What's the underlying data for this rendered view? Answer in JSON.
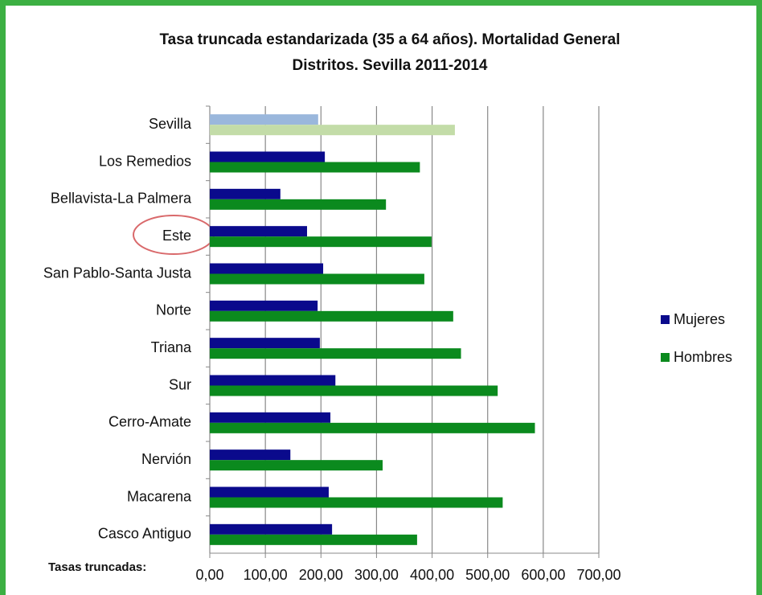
{
  "chart_data": {
    "type": "hbar",
    "title": [
      "Tasa truncada estandarizada (35 a 64 años). Mortalidad General",
      "Distritos. Sevilla 2011-2014"
    ],
    "x_label": "Tasas truncadas:",
    "categories": [
      "Sevilla",
      "Los Remedios",
      "Bellavista-La Palmera",
      "Este",
      "San Pablo-Santa Justa",
      "Norte",
      "Triana",
      "Sur",
      "Cerro-Amate",
      "Nervión",
      "Macarena",
      "Casco Antiguo"
    ],
    "series": [
      {
        "name": "Mujeres",
        "color": "#0a0a8c",
        "colors": [
          "#9ab7dc",
          "#0a0a8c",
          "#0a0a8c",
          "#0a0a8c",
          "#0a0a8c",
          "#0a0a8c",
          "#0a0a8c",
          "#0a0a8c",
          "#0a0a8c",
          "#0a0a8c",
          "#0a0a8c",
          "#0a0a8c"
        ],
        "values": [
          195,
          207,
          127,
          175,
          204,
          194,
          198,
          226,
          217,
          145,
          214,
          220
        ]
      },
      {
        "name": "Hombres",
        "color": "#0b8a1e",
        "colors": [
          "#c3dca8",
          "#0b8a1e",
          "#0b8a1e",
          "#0b8a1e",
          "#0b8a1e",
          "#0b8a1e",
          "#0b8a1e",
          "#0b8a1e",
          "#0b8a1e",
          "#0b8a1e",
          "#0b8a1e",
          "#0b8a1e"
        ],
        "values": [
          441,
          378,
          317,
          399,
          386,
          438,
          452,
          518,
          585,
          311,
          527,
          373
        ]
      }
    ],
    "xlim": [
      0,
      700
    ],
    "xticks": [
      {
        "value": 0,
        "label": "0,00"
      },
      {
        "value": 100,
        "label": "100,00"
      },
      {
        "value": 200,
        "label": "200,00"
      },
      {
        "value": 300,
        "label": "300,00"
      },
      {
        "value": 400,
        "label": "400,00"
      },
      {
        "value": 500,
        "label": "500,00"
      },
      {
        "value": 600,
        "label": "600,00"
      },
      {
        "value": 700,
        "label": "700,00"
      }
    ],
    "grid": true,
    "legend": "right"
  }
}
